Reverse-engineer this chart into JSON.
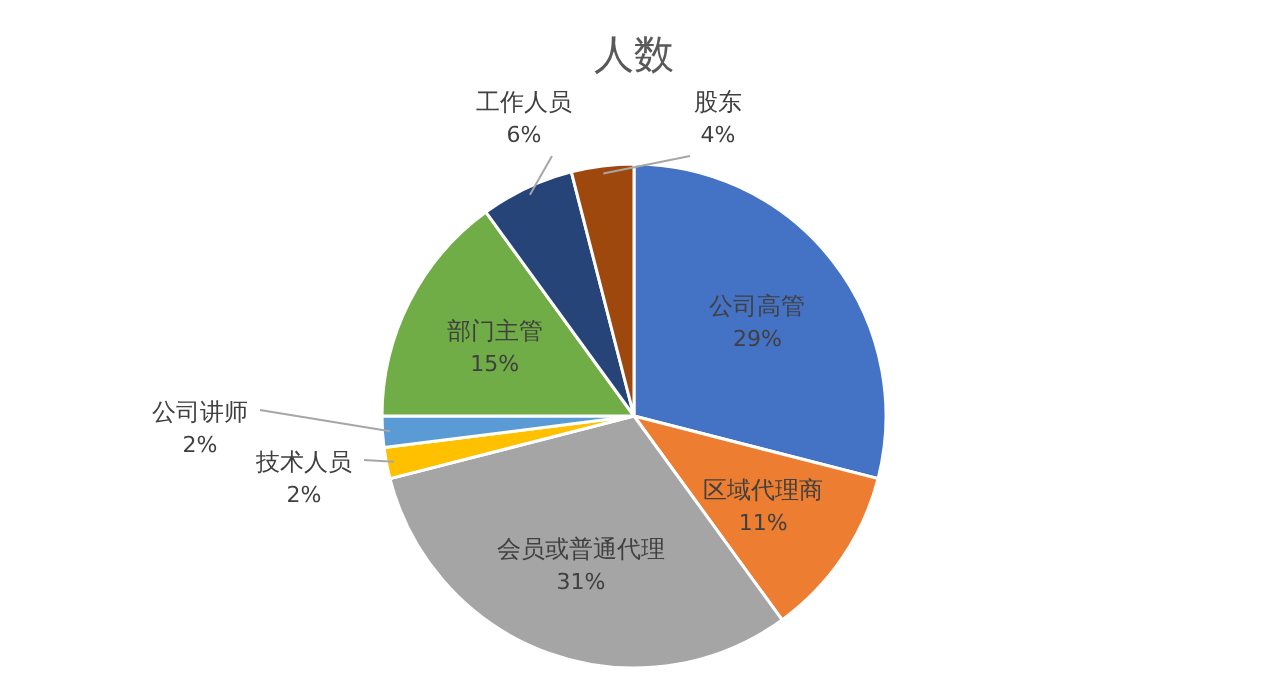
{
  "chart_data": {
    "type": "pie",
    "title": "人数",
    "categories": [
      "公司高管",
      "区域代理商",
      "会员或普通代理",
      "技术人员",
      "公司讲师",
      "部门主管",
      "工作人员",
      "股东"
    ],
    "values": [
      29,
      11,
      31,
      2,
      2,
      15,
      6,
      4
    ],
    "colors": [
      "#4472c4",
      "#ed7d31",
      "#a5a5a5",
      "#ffc000",
      "#5b9bd5",
      "#70ad47",
      "#264478",
      "#9e480e"
    ],
    "value_labels": [
      "29%",
      "11%",
      "31%",
      "2%",
      "2%",
      "15%",
      "6%",
      "4%"
    ]
  }
}
